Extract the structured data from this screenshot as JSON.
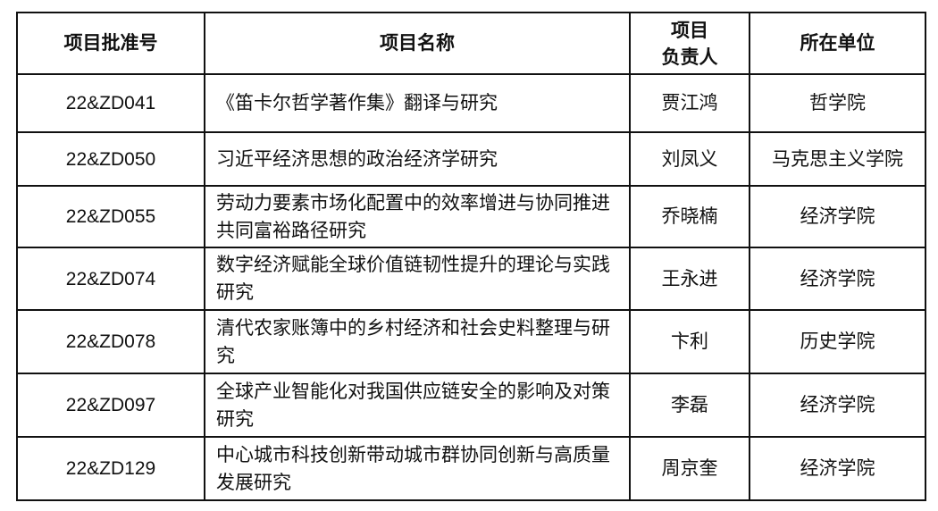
{
  "table": {
    "headers": [
      "项目批准号",
      "项目名称",
      "项目\n负责人",
      "所在单位"
    ],
    "rows": [
      {
        "code": "22&ZD041",
        "name": "《笛卡尔哲学著作集》翻译与研究",
        "leader": "贾江鸿",
        "unit": "哲学院"
      },
      {
        "code": "22&ZD050",
        "name": "习近平经济思想的政治经济学研究",
        "leader": "刘凤义",
        "unit": "马克思主义学院"
      },
      {
        "code": "22&ZD055",
        "name": "劳动力要素市场化配置中的效率增进与协同推进共同富裕路径研究",
        "leader": "乔晓楠",
        "unit": "经济学院"
      },
      {
        "code": "22&ZD074",
        "name": "数字经济赋能全球价值链韧性提升的理论与实践研究",
        "leader": "王永进",
        "unit": "经济学院"
      },
      {
        "code": "22&ZD078",
        "name": "清代农家账簿中的乡村经济和社会史料整理与研究",
        "leader": "卞利",
        "unit": "历史学院"
      },
      {
        "code": "22&ZD097",
        "name": "全球产业智能化对我国供应链安全的影响及对策研究",
        "leader": "李磊",
        "unit": "经济学院"
      },
      {
        "code": "22&ZD129",
        "name": "中心城市科技创新带动城市群协同创新与高质量发展研究",
        "leader": "周京奎",
        "unit": "经济学院"
      }
    ]
  }
}
